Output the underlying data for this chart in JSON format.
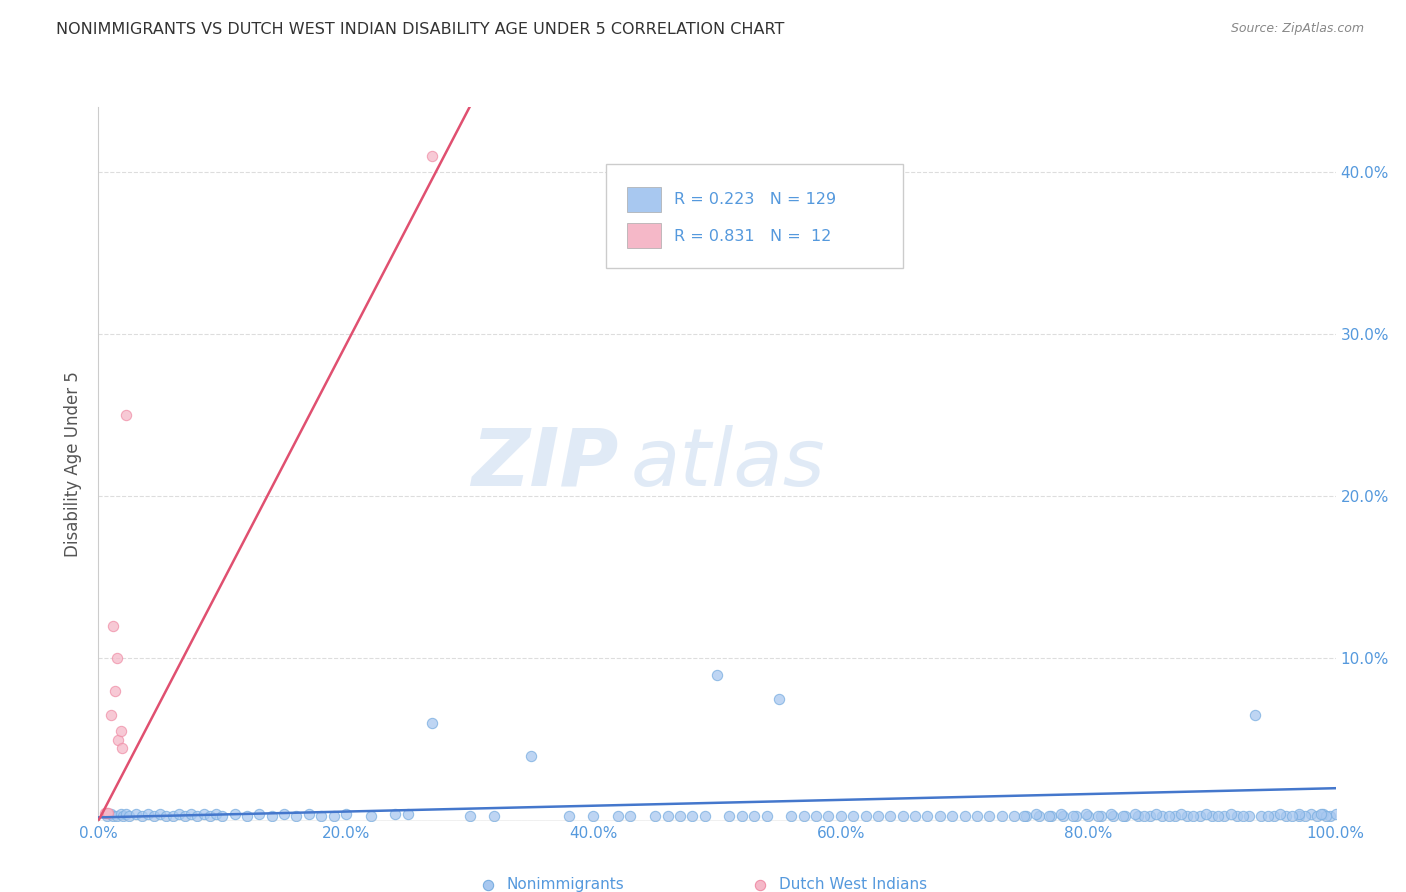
{
  "title": "NONIMMIGRANTS VS DUTCH WEST INDIAN DISABILITY AGE UNDER 5 CORRELATION CHART",
  "source": "Source: ZipAtlas.com",
  "ylabel": "Disability Age Under 5",
  "xlim": [
    0.0,
    1.0
  ],
  "ylim": [
    0.0,
    0.44
  ],
  "yticks": [
    0.0,
    0.1,
    0.2,
    0.3,
    0.4
  ],
  "yticklabels": [
    "",
    "10.0%",
    "20.0%",
    "30.0%",
    "40.0%"
  ],
  "xticks": [
    0.0,
    0.2,
    0.4,
    0.6,
    0.8,
    1.0
  ],
  "xticklabels": [
    "0.0%",
    "20.0%",
    "40.0%",
    "60.0%",
    "80.0%",
    "100.0%"
  ],
  "blue_color": "#a8c8f0",
  "pink_color": "#f5b8c8",
  "blue_edge_color": "#7aaee0",
  "pink_edge_color": "#f090a8",
  "blue_line_color": "#4477cc",
  "pink_line_color": "#e05070",
  "text_color": "#5599dd",
  "grid_color": "#dddddd",
  "legend_R_blue": "0.223",
  "legend_N_blue": "129",
  "legend_R_pink": "0.831",
  "legend_N_pink": "12",
  "watermark_zip": "ZIP",
  "watermark_atlas": "atlas",
  "blue_scatter_x": [
    0.007,
    0.01,
    0.012,
    0.015,
    0.018,
    0.02,
    0.022,
    0.025,
    0.03,
    0.035,
    0.04,
    0.045,
    0.05,
    0.055,
    0.06,
    0.065,
    0.07,
    0.075,
    0.08,
    0.085,
    0.09,
    0.095,
    0.1,
    0.11,
    0.12,
    0.13,
    0.14,
    0.15,
    0.16,
    0.17,
    0.18,
    0.19,
    0.2,
    0.22,
    0.24,
    0.25,
    0.27,
    0.3,
    0.32,
    0.35,
    0.38,
    0.4,
    0.42,
    0.43,
    0.45,
    0.46,
    0.47,
    0.48,
    0.49,
    0.5,
    0.51,
    0.52,
    0.53,
    0.54,
    0.55,
    0.56,
    0.57,
    0.58,
    0.59,
    0.6,
    0.61,
    0.62,
    0.63,
    0.64,
    0.65,
    0.66,
    0.67,
    0.68,
    0.69,
    0.7,
    0.71,
    0.72,
    0.73,
    0.74,
    0.75,
    0.76,
    0.77,
    0.78,
    0.79,
    0.8,
    0.81,
    0.82,
    0.83,
    0.84,
    0.85,
    0.86,
    0.87,
    0.88,
    0.89,
    0.9,
    0.91,
    0.92,
    0.93,
    0.94,
    0.95,
    0.96,
    0.97,
    0.98,
    0.985,
    0.99,
    0.995,
    1.0,
    0.992,
    0.988,
    0.975,
    0.97,
    0.965,
    0.955,
    0.945,
    0.935,
    0.925,
    0.915,
    0.905,
    0.895,
    0.885,
    0.875,
    0.865,
    0.855,
    0.845,
    0.838,
    0.828,
    0.818,
    0.808,
    0.798,
    0.788,
    0.778,
    0.768,
    0.758,
    0.748
  ],
  "blue_scatter_y": [
    0.003,
    0.004,
    0.003,
    0.003,
    0.004,
    0.003,
    0.004,
    0.003,
    0.004,
    0.003,
    0.004,
    0.003,
    0.004,
    0.003,
    0.003,
    0.004,
    0.003,
    0.004,
    0.003,
    0.004,
    0.003,
    0.004,
    0.003,
    0.004,
    0.003,
    0.004,
    0.003,
    0.004,
    0.003,
    0.004,
    0.003,
    0.003,
    0.004,
    0.003,
    0.004,
    0.004,
    0.06,
    0.003,
    0.003,
    0.04,
    0.003,
    0.003,
    0.003,
    0.003,
    0.003,
    0.003,
    0.003,
    0.003,
    0.003,
    0.09,
    0.003,
    0.003,
    0.003,
    0.003,
    0.075,
    0.003,
    0.003,
    0.003,
    0.003,
    0.003,
    0.003,
    0.003,
    0.003,
    0.003,
    0.003,
    0.003,
    0.003,
    0.003,
    0.003,
    0.003,
    0.003,
    0.003,
    0.003,
    0.003,
    0.003,
    0.003,
    0.003,
    0.003,
    0.003,
    0.003,
    0.003,
    0.003,
    0.003,
    0.003,
    0.003,
    0.003,
    0.003,
    0.003,
    0.003,
    0.003,
    0.003,
    0.003,
    0.003,
    0.003,
    0.003,
    0.003,
    0.003,
    0.004,
    0.003,
    0.004,
    0.003,
    0.004,
    0.003,
    0.004,
    0.003,
    0.004,
    0.003,
    0.004,
    0.003,
    0.065,
    0.003,
    0.004,
    0.003,
    0.004,
    0.003,
    0.004,
    0.003,
    0.004,
    0.003,
    0.004,
    0.003,
    0.004,
    0.003,
    0.004,
    0.003,
    0.004,
    0.003,
    0.004,
    0.003
  ],
  "pink_scatter_x": [
    0.005,
    0.007,
    0.008,
    0.01,
    0.012,
    0.013,
    0.015,
    0.016,
    0.018,
    0.019,
    0.022,
    0.27
  ],
  "pink_scatter_y": [
    0.005,
    0.005,
    0.005,
    0.065,
    0.12,
    0.08,
    0.1,
    0.05,
    0.055,
    0.045,
    0.25,
    0.41
  ],
  "blue_trend_x": [
    0.0,
    1.0
  ],
  "blue_trend_y": [
    0.002,
    0.02
  ],
  "pink_trend_x": [
    0.0,
    0.3
  ],
  "pink_trend_y": [
    0.0,
    0.44
  ]
}
